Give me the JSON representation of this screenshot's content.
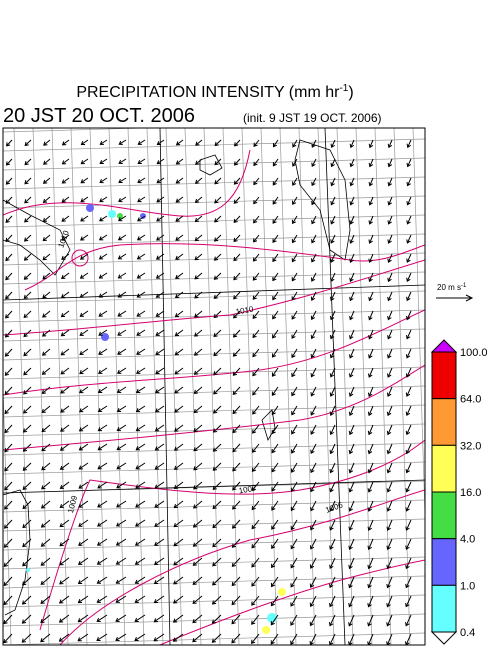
{
  "header": {
    "title": "PRECIPITATION INTENSITY (mm hr",
    "title_exponent": "-1",
    "title_close": ")",
    "valid_time": "20 JST 20 OCT. 2006",
    "init_time": "(init. 9 JST 19 OCT. 2006)"
  },
  "wind_scale": {
    "label": "20 m s",
    "exponent": "-1"
  },
  "colorbar": {
    "levels": [
      "100.0",
      "64.0",
      "32.0",
      "16.0",
      "4.0",
      "1.0",
      "0.4"
    ],
    "colors": [
      "#cc00ff",
      "#ee0000",
      "#ff9933",
      "#ffff55",
      "#44dd44",
      "#6666ff",
      "#66ffff",
      "#ffffff"
    ]
  },
  "contour_labels": [
    "1010",
    "1010",
    "1009",
    "1007",
    "1006"
  ]
}
